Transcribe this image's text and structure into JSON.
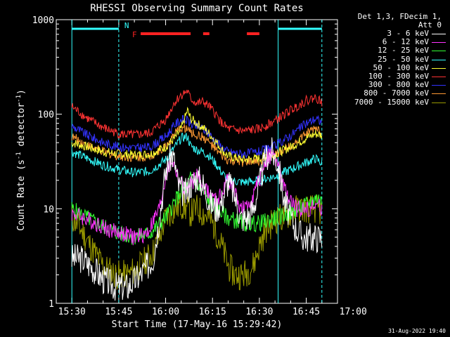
{
  "chart_data": {
    "type": "line",
    "title": "RHESSI Observing Summary Count Rates",
    "xlabel": "Start Time (17-May-16 15:29:42)",
    "ylabel_main": "Count Rate (s",
    "ylabel_sup1": "-1",
    "ylabel_mid": " detector",
    "ylabel_sup2": "-1",
    "ylabel_end": ")",
    "y_scale": "log",
    "ylim": [
      1,
      1000
    ],
    "y_ticks": [
      {
        "value": 1,
        "label": "1"
      },
      {
        "value": 10,
        "label": "10"
      },
      {
        "value": 100,
        "label": "100"
      },
      {
        "value": 1000,
        "label": "1000"
      }
    ],
    "x_range_minutes": [
      0,
      80
    ],
    "x_ticks": [
      {
        "t": 0,
        "label": "15:30"
      },
      {
        "t": 15,
        "label": "15:45"
      },
      {
        "t": 30,
        "label": "16:00"
      },
      {
        "t": 45,
        "label": "16:15"
      },
      {
        "t": 60,
        "label": "16:30"
      },
      {
        "t": 75,
        "label": "16:45"
      },
      {
        "t": 90,
        "label": "17:00"
      }
    ],
    "legend_header": [
      "Det 1,3, FDecim 1,",
      "Att 0"
    ],
    "series": [
      {
        "name": "3 - 6 keV",
        "color": "#ffffff",
        "t": [
          0,
          3,
          6,
          10,
          14,
          18,
          22,
          26,
          28,
          30,
          32,
          33,
          34,
          36,
          38,
          40,
          42,
          44,
          46,
          48,
          50,
          52,
          54,
          56,
          58,
          60,
          62,
          64,
          66,
          68,
          70,
          72,
          74,
          76,
          78,
          80
        ],
        "v": [
          3,
          3,
          2.5,
          1.8,
          1.5,
          1.5,
          2,
          3,
          8,
          25,
          38,
          30,
          18,
          14,
          18,
          22,
          18,
          12,
          10,
          12,
          20,
          14,
          8,
          8,
          10,
          18,
          35,
          40,
          30,
          12,
          8,
          6,
          5,
          5,
          5,
          5
        ]
      },
      {
        "name": "6 - 12 keV",
        "color": "#ff33ff",
        "t": [
          0,
          4,
          8,
          12,
          16,
          20,
          24,
          28,
          30,
          32,
          34,
          36,
          38,
          40,
          42,
          44,
          46,
          48,
          50,
          52,
          54,
          56,
          58,
          60,
          62,
          64,
          66,
          68,
          70,
          72,
          74,
          76,
          78,
          80
        ],
        "v": [
          9,
          8,
          7,
          6,
          5.5,
          5,
          5.5,
          10,
          22,
          33,
          22,
          16,
          18,
          22,
          18,
          14,
          12,
          14,
          22,
          15,
          10,
          10,
          14,
          20,
          33,
          38,
          30,
          16,
          12,
          10,
          10,
          10,
          11,
          10
        ]
      },
      {
        "name": "12 - 25 keV",
        "color": "#33ff33",
        "t": [
          0,
          5,
          10,
          15,
          20,
          25,
          30,
          33,
          35,
          37,
          38,
          40,
          42,
          44,
          46,
          48,
          50,
          55,
          60,
          65,
          70,
          75,
          78,
          80
        ],
        "v": [
          10,
          8,
          6.5,
          5.5,
          5,
          5.5,
          8,
          12,
          15,
          17,
          21,
          18,
          15,
          12,
          10,
          9,
          8,
          7,
          7,
          8,
          9,
          11,
          13,
          12
        ]
      },
      {
        "name": "25 - 50 keV",
        "color": "#33ffff",
        "t": [
          0,
          5,
          10,
          15,
          20,
          25,
          30,
          33,
          35,
          37,
          38,
          40,
          42,
          44,
          46,
          48,
          50,
          55,
          60,
          65,
          70,
          75,
          78,
          80
        ],
        "v": [
          40,
          34,
          29,
          26,
          24,
          25,
          33,
          45,
          56,
          58,
          46,
          42,
          40,
          36,
          30,
          24,
          20,
          19,
          20,
          22,
          26,
          31,
          34,
          30
        ]
      },
      {
        "name": "50 - 100 keV",
        "color": "#ffff33",
        "t": [
          0,
          5,
          10,
          15,
          20,
          25,
          30,
          33,
          35,
          37,
          38,
          40,
          42,
          44,
          46,
          48,
          50,
          55,
          60,
          65,
          70,
          75,
          78,
          80
        ],
        "v": [
          50,
          45,
          40,
          38,
          37,
          38,
          45,
          56,
          70,
          110,
          90,
          80,
          72,
          62,
          52,
          42,
          36,
          33,
          34,
          38,
          45,
          56,
          62,
          60
        ]
      },
      {
        "name": "100 - 300 keV",
        "color": "#ff3333",
        "t": [
          0,
          5,
          10,
          15,
          20,
          25,
          30,
          33,
          35,
          37,
          38,
          40,
          42,
          44,
          46,
          48,
          50,
          55,
          60,
          65,
          70,
          75,
          78,
          80
        ],
        "v": [
          120,
          90,
          72,
          62,
          60,
          63,
          88,
          135,
          160,
          175,
          145,
          130,
          135,
          120,
          100,
          80,
          70,
          66,
          70,
          85,
          110,
          140,
          150,
          135
        ]
      },
      {
        "name": "300 - 800 keV",
        "color": "#3333ff",
        "t": [
          0,
          5,
          10,
          15,
          20,
          25,
          30,
          33,
          35,
          37,
          38,
          40,
          42,
          44,
          46,
          48,
          50,
          55,
          60,
          65,
          70,
          75,
          78,
          80
        ],
        "v": [
          75,
          60,
          50,
          45,
          44,
          45,
          58,
          78,
          88,
          86,
          78,
          74,
          70,
          62,
          52,
          45,
          40,
          38,
          40,
          46,
          60,
          80,
          90,
          82
        ]
      },
      {
        "name": "800 - 7000 keV",
        "color": "#ff9933",
        "t": [
          0,
          5,
          10,
          15,
          20,
          25,
          30,
          33,
          35,
          37,
          38,
          40,
          42,
          44,
          46,
          48,
          50,
          55,
          60,
          65,
          70,
          75,
          78,
          80
        ],
        "v": [
          58,
          47,
          40,
          36,
          35,
          36,
          46,
          62,
          72,
          70,
          64,
          60,
          57,
          50,
          42,
          36,
          32,
          31,
          32,
          37,
          47,
          62,
          72,
          66
        ]
      },
      {
        "name": "7000 - 15000 keV",
        "color": "#999900",
        "t": [
          0,
          3,
          6,
          10,
          14,
          18,
          22,
          26,
          28,
          30,
          33,
          35,
          37,
          38,
          40,
          42,
          44,
          46,
          48,
          50,
          52,
          55,
          58,
          60,
          62,
          64,
          66,
          68,
          70,
          72,
          74,
          76,
          78,
          80
        ],
        "v": [
          8,
          6,
          4,
          2.5,
          2,
          2,
          2.5,
          3.5,
          5,
          8,
          10,
          11,
          10,
          9,
          10,
          9,
          8,
          6,
          4,
          2.5,
          2,
          2,
          2.5,
          4,
          6,
          7,
          8,
          8,
          9,
          10,
          10,
          10,
          10,
          9
        ]
      }
    ],
    "bars": [
      {
        "label": "N",
        "color": "#33ffff",
        "segments": [
          [
            0,
            15
          ],
          [
            66,
            80
          ]
        ],
        "level": "top"
      },
      {
        "label": "F",
        "color": "#ff2222",
        "segments": [
          [
            22,
            38
          ],
          [
            42,
            44
          ],
          [
            56,
            60
          ]
        ],
        "level": "second"
      }
    ],
    "vlines": [
      {
        "t": 0,
        "color": "#33ffff",
        "style": "solid"
      },
      {
        "t": 15,
        "color": "#33ffff",
        "style": "dashed"
      },
      {
        "t": 66,
        "color": "#33ffff",
        "style": "solid"
      },
      {
        "t": 80,
        "color": "#33ffff",
        "style": "dashed"
      }
    ],
    "timestamp": "31-Aug-2022 19:40"
  }
}
